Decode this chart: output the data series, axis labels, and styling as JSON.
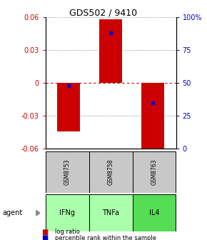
{
  "title": "GDS502 / 9410",
  "samples": [
    "GSM8753",
    "GSM8758",
    "GSM8763"
  ],
  "agents": [
    "IFNg",
    "TNFa",
    "IL4"
  ],
  "log_ratios": [
    -0.044,
    0.058,
    -0.065
  ],
  "percentile_ranks": [
    48,
    88,
    35
  ],
  "ylim_min": -0.06,
  "ylim_max": 0.06,
  "yticks_left": [
    -0.06,
    -0.03,
    0,
    0.03,
    0.06
  ],
  "yticks_right": [
    0,
    25,
    50,
    75,
    100
  ],
  "bar_color": "#CC0000",
  "pct_color": "#0000CC",
  "grid_color": "#888888",
  "zero_line_color": "#CC0000",
  "sample_bg": "#C8C8C8",
  "agent_colors": [
    "#AAFFAA",
    "#AAFFAA",
    "#55DD55"
  ],
  "left_label_color": "#CC0000",
  "right_label_color": "#0000CC",
  "title_fontsize": 9,
  "tick_fontsize": 7,
  "legend_fontsize": 6,
  "sample_fontsize": 5.5,
  "agent_fontsize": 7
}
